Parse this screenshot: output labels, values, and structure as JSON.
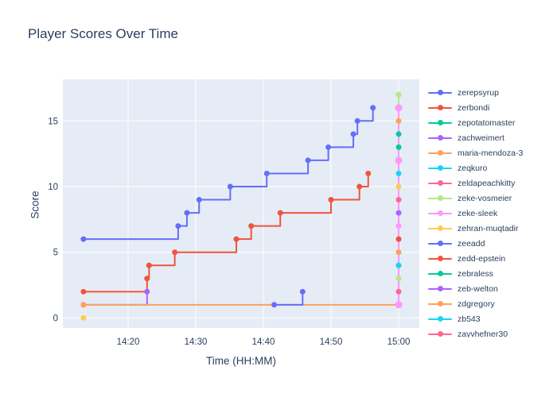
{
  "title": "Player Scores Over Time",
  "chart_data": {
    "type": "line",
    "line_shape": "hv",
    "title": "Player Scores Over Time",
    "xlabel": "Time (HH:MM)",
    "ylabel": "Score",
    "x_axis": {
      "tick_labels": [
        "14:20",
        "14:30",
        "14:40",
        "14:50",
        "15:00"
      ],
      "tick_minutes_after_1400": [
        20,
        30,
        40,
        50,
        60
      ],
      "range_minutes_after_1400": [
        10.4,
        63.1
      ]
    },
    "y_axis": {
      "tick_labels": [
        "0",
        "5",
        "10",
        "15"
      ],
      "ticks": [
        0,
        5,
        10,
        15
      ],
      "range": [
        -0.85,
        18.2
      ]
    },
    "grid": true,
    "legend_position": "right",
    "series": [
      {
        "name": "zerepsyrup",
        "color": "#636EFA",
        "points": [
          [
            13.4,
            6
          ],
          [
            27.4,
            7
          ],
          [
            28.7,
            8
          ],
          [
            30.5,
            9
          ],
          [
            35.1,
            10
          ],
          [
            40.5,
            11
          ],
          [
            46.6,
            12
          ],
          [
            49.6,
            13
          ],
          [
            53.3,
            14
          ],
          [
            53.9,
            15
          ],
          [
            56.2,
            16
          ]
        ]
      },
      {
        "name": "zerbondi",
        "color": "#EF553B",
        "points": [
          [
            13.4,
            2
          ],
          [
            22.8,
            3
          ],
          [
            23.1,
            4
          ],
          [
            26.9,
            5
          ],
          [
            36.0,
            6
          ],
          [
            38.2,
            7
          ],
          [
            42.5,
            8
          ],
          [
            50.0,
            9
          ],
          [
            54.2,
            10
          ],
          [
            55.5,
            11
          ]
        ]
      },
      {
        "name": "zachweimert",
        "color": "#AB63FA",
        "points": [
          [
            13.4,
            1
          ],
          [
            22.8,
            2
          ]
        ]
      },
      {
        "name": "maria-mendoza-3",
        "color": "#FFA15A",
        "points": [
          [
            13.4,
            1
          ],
          [
            60,
            1
          ]
        ]
      },
      {
        "name": "zeke-vosmeier",
        "color": "#B6E880",
        "points": [
          [
            60,
            16
          ],
          [
            60,
            17
          ]
        ]
      },
      {
        "name": "zeke-sleek",
        "color": "#FF97FF",
        "points": [
          [
            60,
            1
          ],
          [
            60,
            12
          ],
          [
            60,
            16
          ]
        ],
        "marker_radius": 4.5
      },
      {
        "name": "zehran-muqtadir",
        "color": "#FECB52",
        "points": [
          [
            13.4,
            0
          ]
        ]
      },
      {
        "name": "zeeadd",
        "color": "#636EFA",
        "points": [
          [
            41.6,
            1
          ],
          [
            45.8,
            2
          ]
        ]
      }
    ],
    "final_stack": {
      "minute_after_1400": 60,
      "markers": [
        {
          "score": 17,
          "color": "#B6E880"
        },
        {
          "score": 15,
          "color": "#FFA15A"
        },
        {
          "score": 14,
          "color": "#00CC96"
        },
        {
          "score": 13,
          "color": "#00CC96"
        },
        {
          "score": 11,
          "color": "#19D3F3"
        },
        {
          "score": 10,
          "color": "#FECB52"
        },
        {
          "score": 9,
          "color": "#FF6692"
        },
        {
          "score": 8,
          "color": "#AB63FA"
        },
        {
          "score": 7,
          "color": "#FF97FF"
        },
        {
          "score": 6,
          "color": "#EF553B"
        },
        {
          "score": 5,
          "color": "#FFA15A"
        },
        {
          "score": 4,
          "color": "#19D3F3"
        },
        {
          "score": 3,
          "color": "#B6E880"
        },
        {
          "score": 2,
          "color": "#FF6692"
        }
      ]
    },
    "legend": [
      {
        "name": "zerepsyrup",
        "color": "#636EFA"
      },
      {
        "name": "zerbondi",
        "color": "#EF553B"
      },
      {
        "name": "zepotatomaster",
        "color": "#00CC96"
      },
      {
        "name": "zachweimert",
        "color": "#AB63FA"
      },
      {
        "name": "maria-mendoza-3",
        "color": "#FFA15A"
      },
      {
        "name": "zeqkuro",
        "color": "#19D3F3"
      },
      {
        "name": "zeldapeachkitty",
        "color": "#FF6692"
      },
      {
        "name": "zeke-vosmeier",
        "color": "#B6E880"
      },
      {
        "name": "zeke-sleek",
        "color": "#FF97FF"
      },
      {
        "name": "zehran-muqtadir",
        "color": "#FECB52"
      },
      {
        "name": "zeeadd",
        "color": "#636EFA"
      },
      {
        "name": "zedd-epstein",
        "color": "#EF553B"
      },
      {
        "name": "zebraless",
        "color": "#00CC96"
      },
      {
        "name": "zeb-welton",
        "color": "#AB63FA"
      },
      {
        "name": "zdgregory",
        "color": "#FFA15A"
      },
      {
        "name": "zb543",
        "color": "#19D3F3"
      },
      {
        "name": "zayvhefner30",
        "color": "#FF6692"
      }
    ],
    "colors": {
      "plot_background": "#E5ECF6",
      "grid": "#FFFFFF",
      "text": "#2a3f5f"
    }
  }
}
